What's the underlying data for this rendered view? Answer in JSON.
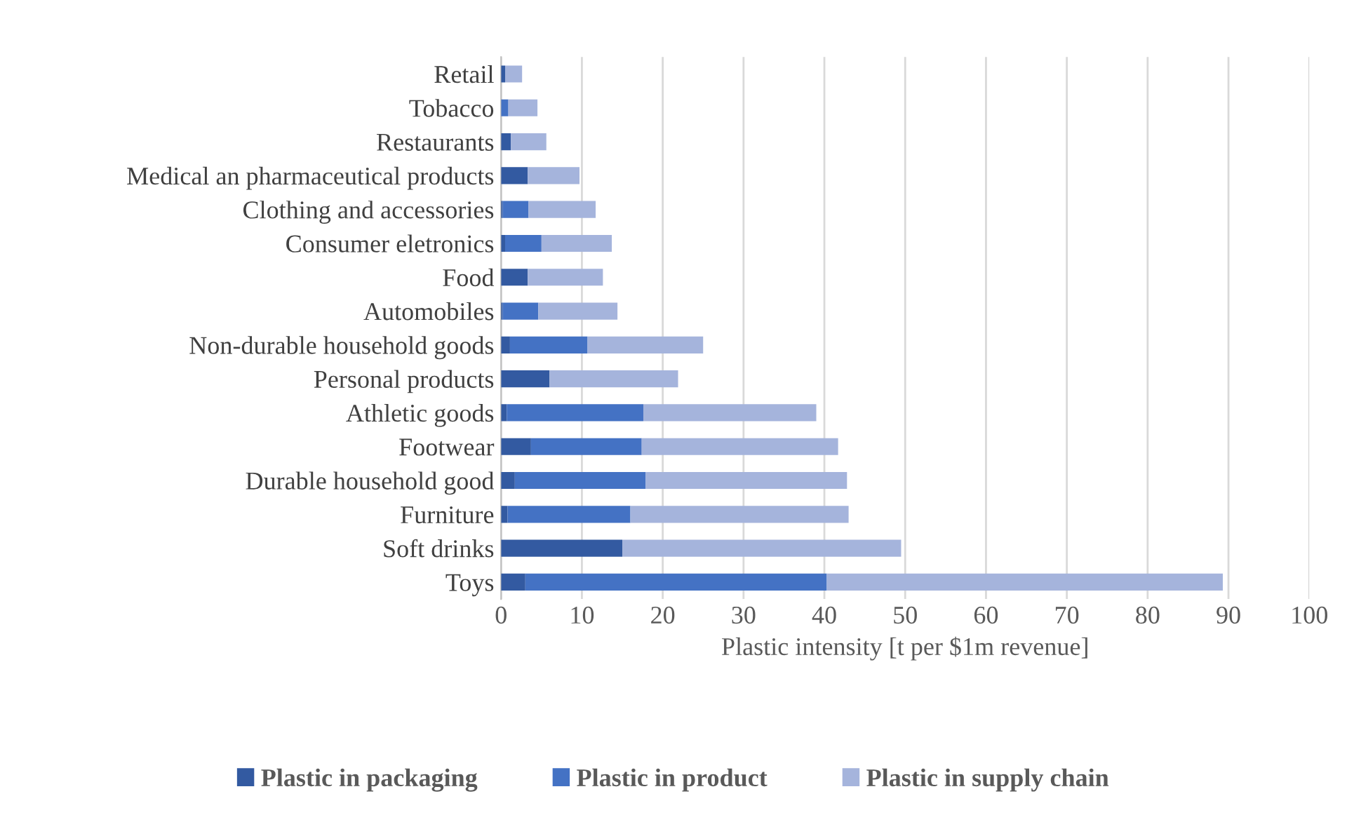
{
  "chart_data": {
    "type": "bar",
    "orientation": "horizontal",
    "stacked": true,
    "categories": [
      "Retail",
      "Tobacco",
      "Restaurants",
      "Medical an pharmaceutical products",
      "Clothing and accessories",
      "Consumer eletronics",
      "Food",
      "Automobiles",
      "Non-durable household goods",
      "Personal products",
      "Athletic goods",
      "Footwear",
      "Durable household good",
      "Furniture",
      "Soft drinks",
      "Toys"
    ],
    "series": [
      {
        "name": "Plastic in packaging",
        "color": "#335aa1",
        "values": [
          0.5,
          null,
          1.2,
          3.3,
          0.2,
          0.5,
          3.3,
          0.2,
          1.1,
          6.0,
          0.7,
          3.7,
          1.7,
          0.8,
          15.0,
          3.0
        ]
      },
      {
        "name": "Plastic in product",
        "color": "#4472c4",
        "values": [
          0,
          0.9,
          0,
          0,
          3.2,
          4.5,
          0,
          4.4,
          9.6,
          0,
          16.9,
          13.7,
          16.2,
          15.2,
          0,
          37.3
        ]
      },
      {
        "name": "Plastic in supply chain",
        "color": "#a5b4dc",
        "values": [
          2.1,
          3.6,
          4.4,
          6.4,
          8.3,
          8.7,
          9.3,
          9.8,
          14.3,
          15.9,
          21.4,
          24.3,
          24.9,
          27.0,
          34.5,
          49.0
        ]
      }
    ],
    "xlabel": "Plastic intensity [t per $1m revenue]",
    "xlim": [
      0,
      100
    ],
    "xticks": [
      0,
      10,
      20,
      30,
      40,
      50,
      60,
      70,
      80,
      90,
      100
    ],
    "grid": "x",
    "legend": "bottom"
  }
}
